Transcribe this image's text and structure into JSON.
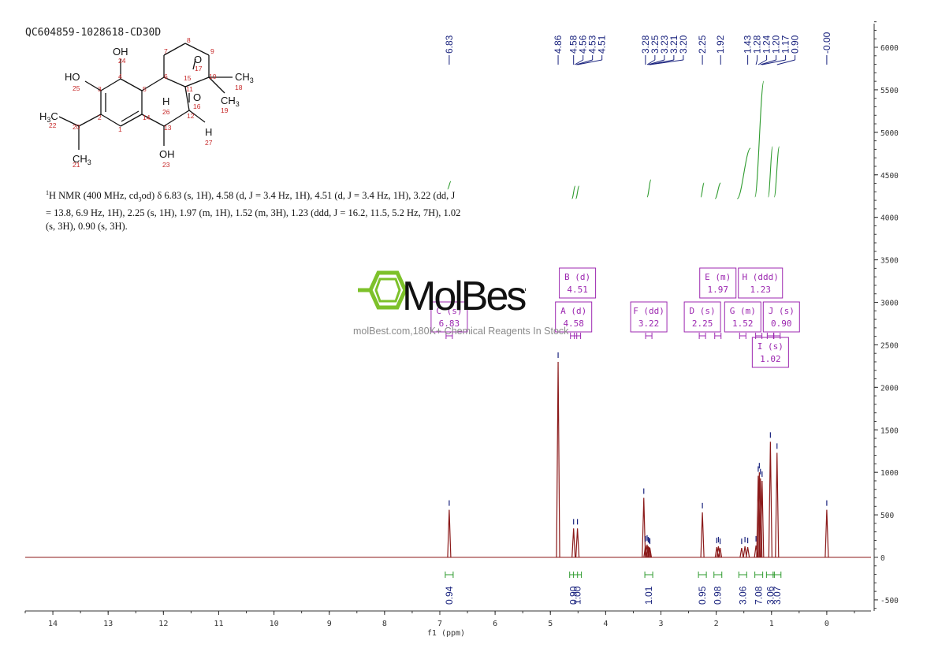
{
  "sample_id": "QC604859-1028618-CD30D",
  "nmr_description": {
    "prefix": "H NMR (400 MHz, cd",
    "line1_rest": "od) δ 6.83 (s, 1H), 4.58 (d, J = 3.4 Hz, 1H), 4.51 (d, J = 3.4 Hz, 1H), 3.22 (dd, J",
    "line2": "= 13.8, 6.9 Hz, 1H), 2.25 (s, 1H), 1.97 (m, 1H), 1.52 (m, 3H), 1.23 (ddd, J = 16.2, 11.5, 5.2 Hz, 7H), 1.02",
    "line3": "(s, 3H), 0.90 (s, 3H).",
    "superscript": "1",
    "subscript": "3"
  },
  "watermark": {
    "logo_text": "MolBest",
    "tagline": "molBest.com,180K+ Chemical Reagents In Stock",
    "logo_color": "#7dc12a"
  },
  "molecule_labels": {
    "atoms": [
      "OH",
      "HO",
      "O",
      "O",
      "H",
      "H",
      "CH3",
      "CH3",
      "H3C",
      "CH3",
      "OH"
    ],
    "numbers": [
      "24",
      "25",
      "3",
      "4",
      "5",
      "6",
      "7",
      "8",
      "9",
      "10",
      "11",
      "12",
      "13",
      "14",
      "15",
      "16",
      "17",
      "18",
      "19",
      "20",
      "21",
      "22",
      "23",
      "26",
      "27",
      "1",
      "2"
    ]
  },
  "chart_data": {
    "type": "line",
    "title": "",
    "xlabel": "f1 (ppm)",
    "ylabel": "",
    "xlim": [
      14.5,
      -0.8
    ],
    "ylim": [
      -650,
      6400
    ],
    "x_ticks": [
      14,
      13,
      12,
      11,
      10,
      9,
      8,
      7,
      6,
      5,
      4,
      3,
      2,
      1,
      0
    ],
    "y_ticks": [
      -500,
      0,
      500,
      1000,
      1500,
      2000,
      2500,
      3000,
      3500,
      4000,
      4500,
      5000,
      5500,
      6000
    ],
    "colors": {
      "spectrum": "#8b1a1a",
      "peak_labels": "#1a237e",
      "integral": "#2e9b2e",
      "multiplet_box": "#9c27b0",
      "axis": "#333333"
    },
    "peaks": [
      {
        "ppm": 6.83,
        "height": 560,
        "width": 0.004
      },
      {
        "ppm": 4.86,
        "height": 2300,
        "width": 0.006
      },
      {
        "ppm": 4.58,
        "height": 340,
        "width": 0.004
      },
      {
        "ppm": 4.51,
        "height": 340,
        "width": 0.004
      },
      {
        "ppm": 3.31,
        "height": 700,
        "width": 0.004
      },
      {
        "ppm": 3.28,
        "height": 140,
        "width": 0.004
      },
      {
        "ppm": 3.25,
        "height": 150,
        "width": 0.004
      },
      {
        "ppm": 3.23,
        "height": 130,
        "width": 0.004
      },
      {
        "ppm": 3.21,
        "height": 120,
        "width": 0.004
      },
      {
        "ppm": 3.2,
        "height": 110,
        "width": 0.004
      },
      {
        "ppm": 2.25,
        "height": 530,
        "width": 0.004
      },
      {
        "ppm": 1.99,
        "height": 120,
        "width": 0.004
      },
      {
        "ppm": 1.96,
        "height": 130,
        "width": 0.004
      },
      {
        "ppm": 1.93,
        "height": 110,
        "width": 0.004
      },
      {
        "ppm": 1.54,
        "height": 110,
        "width": 0.004
      },
      {
        "ppm": 1.48,
        "height": 130,
        "width": 0.004
      },
      {
        "ppm": 1.43,
        "height": 120,
        "width": 0.004
      },
      {
        "ppm": 1.28,
        "height": 140,
        "width": 0.004
      },
      {
        "ppm": 1.24,
        "height": 960,
        "width": 0.004
      },
      {
        "ppm": 1.22,
        "height": 1000,
        "width": 0.004
      },
      {
        "ppm": 1.2,
        "height": 930,
        "width": 0.004
      },
      {
        "ppm": 1.17,
        "height": 900,
        "width": 0.004
      },
      {
        "ppm": 1.02,
        "height": 1360,
        "width": 0.004
      },
      {
        "ppm": 0.9,
        "height": 1230,
        "width": 0.004
      },
      {
        "ppm": 0.0,
        "height": 560,
        "width": 0.004
      }
    ],
    "peak_labels": [
      "6.83",
      "4.86",
      "4.58",
      "4.56",
      "4.53",
      "4.51",
      "3.28",
      "3.25",
      "3.23",
      "3.21",
      "3.20",
      "2.25",
      "1.92",
      "1.43",
      "1.28",
      "1.24",
      "1.20",
      "1.17",
      "0.90",
      "-0.00"
    ],
    "peak_label_ppm": [
      6.83,
      4.86,
      4.58,
      4.56,
      4.53,
      4.51,
      3.28,
      3.25,
      3.23,
      3.21,
      3.2,
      2.25,
      1.92,
      1.43,
      1.28,
      1.24,
      1.2,
      1.17,
      0.9,
      0.0
    ],
    "multiplets": [
      {
        "letter": "C (s)",
        "value": "6.83",
        "ppm": 6.83,
        "row": 2
      },
      {
        "letter": "B (d)",
        "value": "4.51",
        "ppm": 4.51,
        "row": 1
      },
      {
        "letter": "A (d)",
        "value": "4.58",
        "ppm": 4.58,
        "row": 2
      },
      {
        "letter": "F (dd)",
        "value": "3.22",
        "ppm": 3.22,
        "row": 2
      },
      {
        "letter": "D (s)",
        "value": "2.25",
        "ppm": 2.25,
        "row": 2
      },
      {
        "letter": "E (m)",
        "value": "1.97",
        "ppm": 1.97,
        "row": 1
      },
      {
        "letter": "H (ddd)",
        "value": "1.23",
        "ppm": 1.23,
        "row": 1
      },
      {
        "letter": "G (m)",
        "value": "1.52",
        "ppm": 1.52,
        "row": 2
      },
      {
        "letter": "J (s)",
        "value": "0.90",
        "ppm": 0.9,
        "row": 2
      },
      {
        "letter": "I (s)",
        "value": "1.02",
        "ppm": 1.02,
        "row": 3
      }
    ],
    "integrals": [
      {
        "ppm": 6.83,
        "value": "0.94"
      },
      {
        "ppm": 4.58,
        "value": "0.90"
      },
      {
        "ppm": 4.51,
        "value": "1.00"
      },
      {
        "ppm": 3.22,
        "value": "1.01"
      },
      {
        "ppm": 2.25,
        "value": "0.95"
      },
      {
        "ppm": 1.97,
        "value": "0.98"
      },
      {
        "ppm": 1.52,
        "value": "3.06"
      },
      {
        "ppm": 1.23,
        "value": "7.08"
      },
      {
        "ppm": 1.02,
        "value": "3.06"
      },
      {
        "ppm": 0.9,
        "value": "3.07"
      }
    ]
  }
}
